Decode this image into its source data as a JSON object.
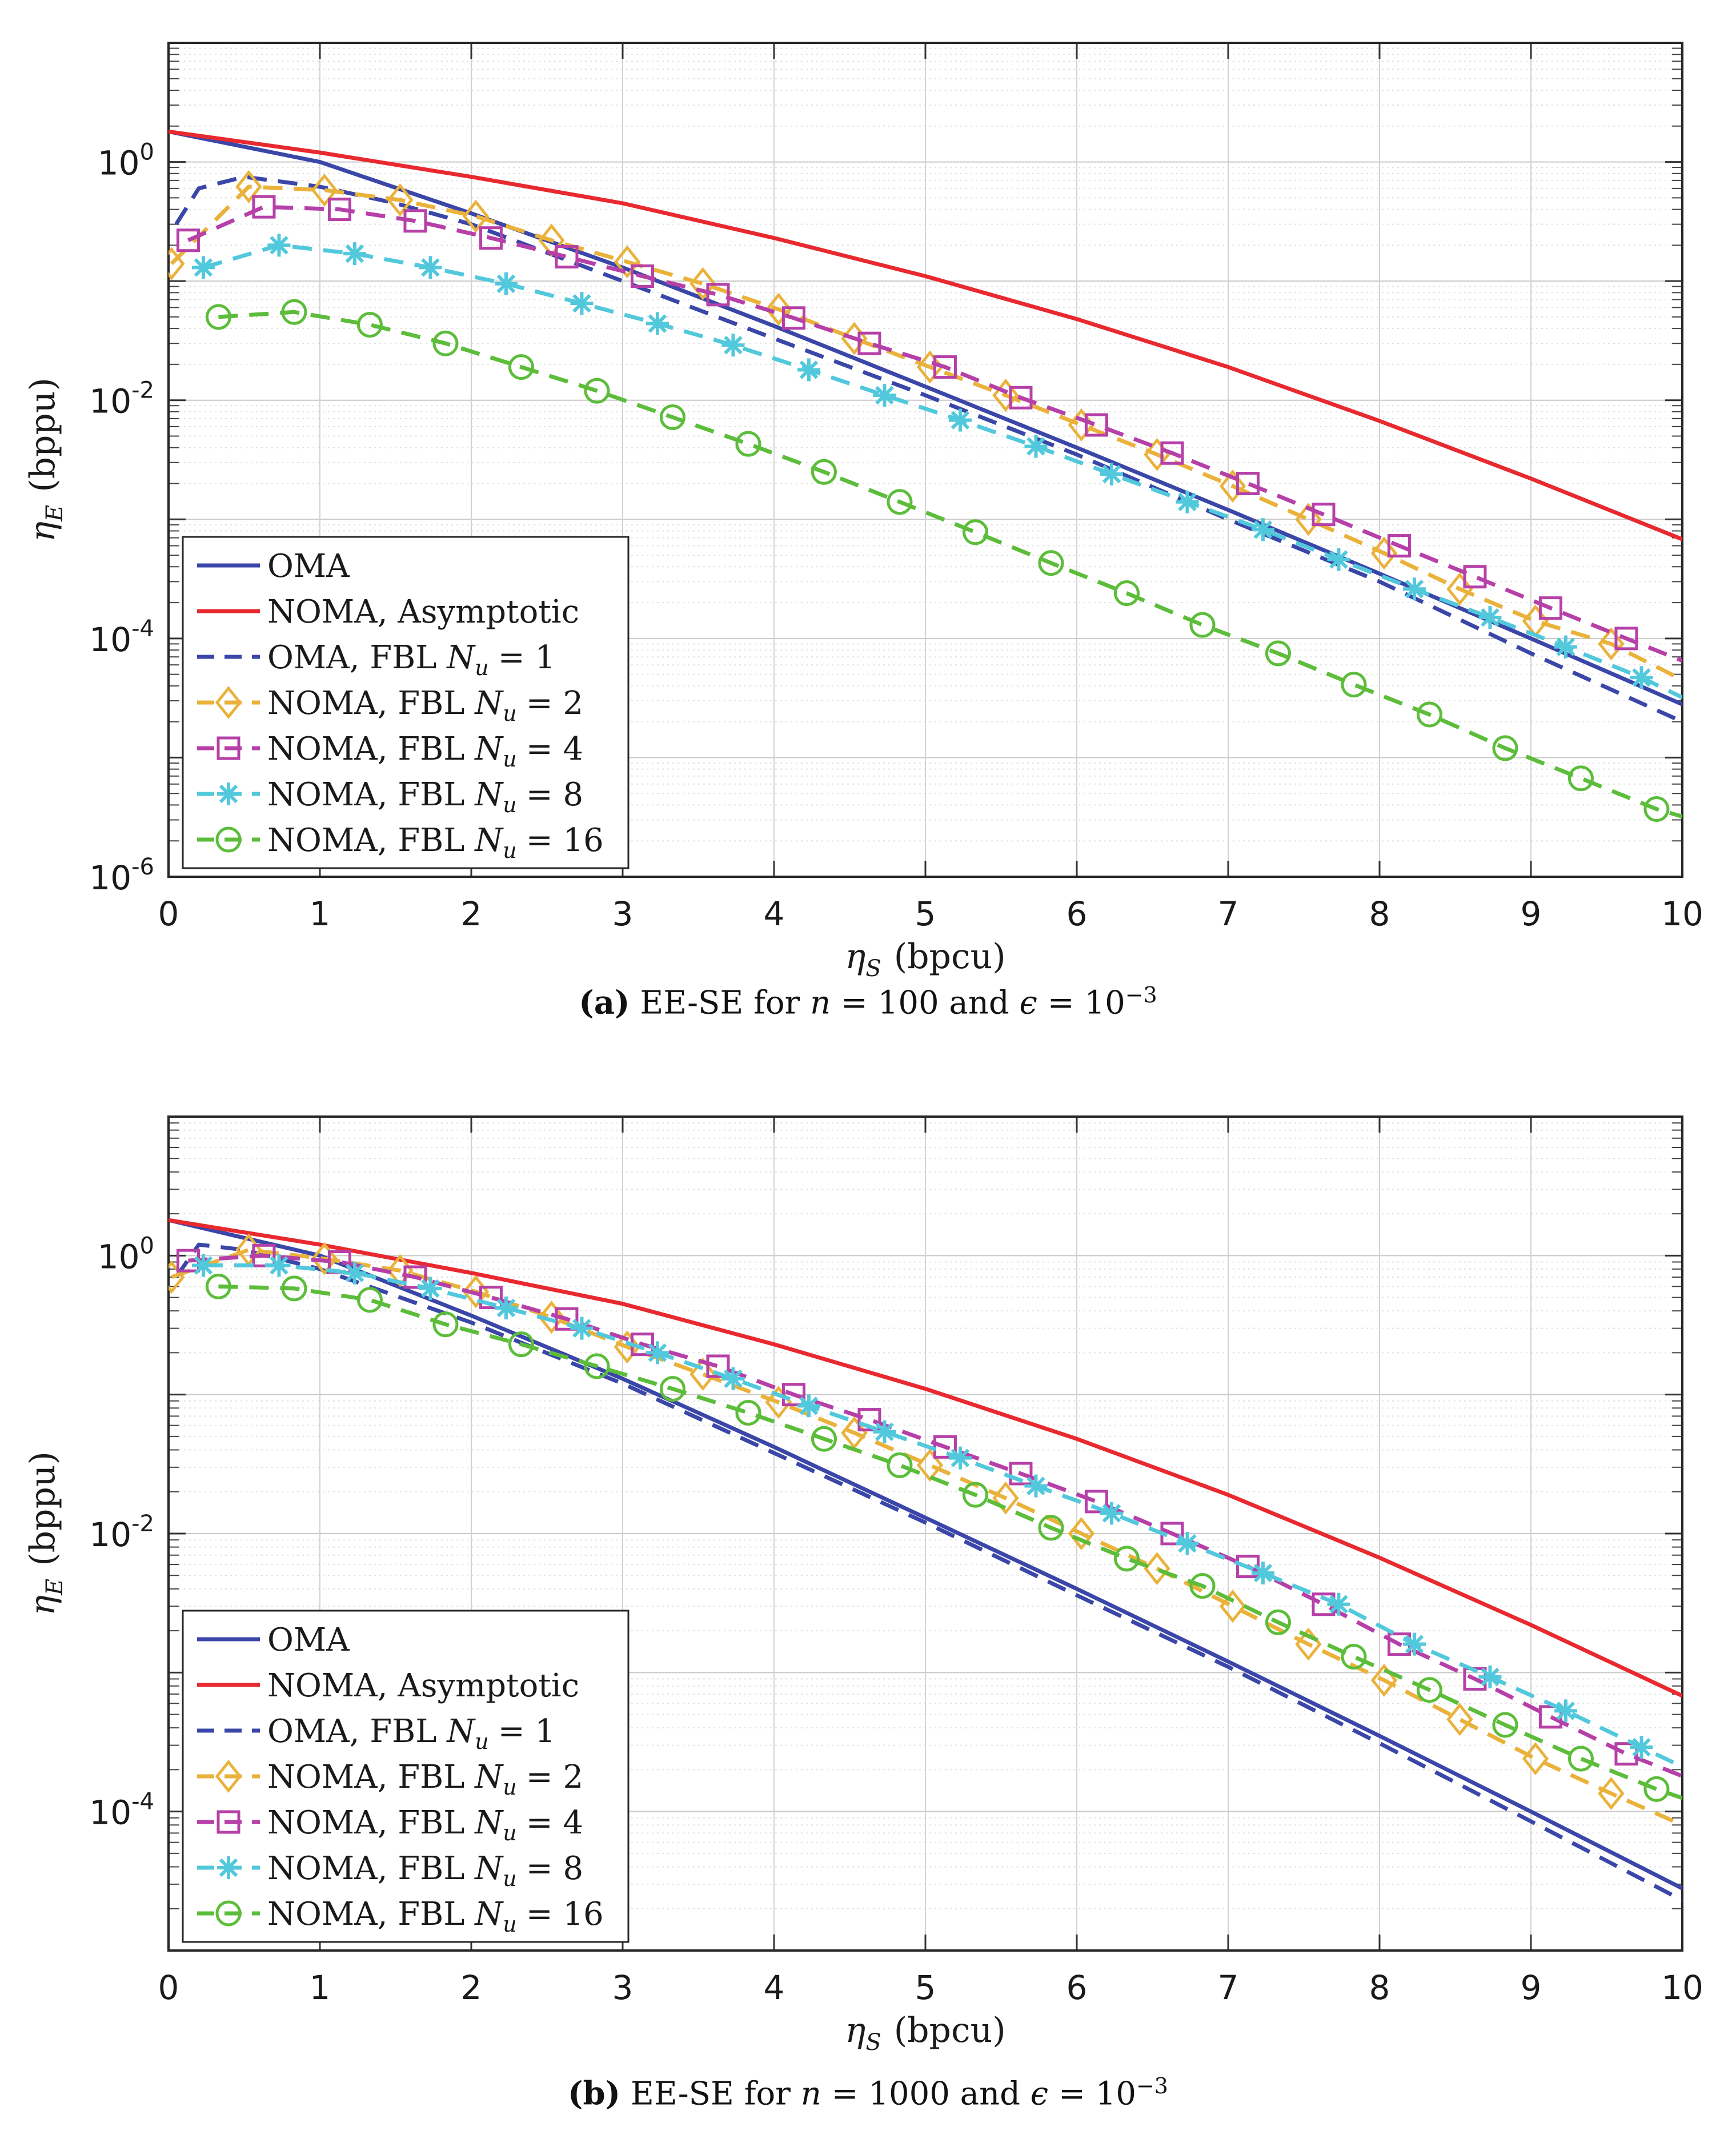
{
  "chart_data": [
    {
      "type": "line",
      "id": "a",
      "yscale": "log",
      "xlim": [
        0,
        10
      ],
      "ylim_exp": [
        -6,
        1
      ],
      "xticks": [
        "0",
        "1",
        "2",
        "3",
        "4",
        "5",
        "6",
        "7",
        "8",
        "9",
        "10"
      ],
      "yticks": [
        {
          "base": "10",
          "exp": "0"
        },
        {
          "base": "10",
          "exp": "-2"
        },
        {
          "base": "10",
          "exp": "-4"
        },
        {
          "base": "10",
          "exp": "-6"
        }
      ],
      "xlabel": {
        "sym": "η",
        "sub": "S",
        "unit": "(bpcu)"
      },
      "ylabel": {
        "sym": "η",
        "sub": "E",
        "unit": "(bppu)"
      },
      "caption": {
        "label": "(a)",
        "text": "EE-SE for",
        "n_sym": "n",
        "n_val": "= 100 and",
        "eps_sym": "ϵ",
        "eps_val": "= 10",
        "eps_exp": "−3"
      },
      "legend": {
        "position": "bottom-left"
      },
      "series": [
        {
          "name": "OMA",
          "color": "#3a46a8",
          "dash": "solid",
          "marker": "none",
          "x": [
            0,
            1,
            2,
            3,
            4,
            5,
            6,
            7,
            8,
            9,
            10
          ],
          "y": [
            1.8,
            1.0,
            0.37,
            0.13,
            0.042,
            0.013,
            0.004,
            0.0012,
            0.00035,
            0.0001,
            2.8e-05
          ]
        },
        {
          "name": "NOMA, Asymptotic",
          "color": "#e8292f",
          "dash": "solid",
          "marker": "none",
          "x": [
            0,
            1,
            2,
            3,
            4,
            5,
            6,
            7,
            8,
            9,
            10
          ],
          "y": [
            1.8,
            1.2,
            0.75,
            0.45,
            0.23,
            0.11,
            0.048,
            0.019,
            0.0067,
            0.0022,
            0.00068
          ]
        },
        {
          "name": "OMA, FBL N_u = 1",
          "legend_prefix": "OMA, FBL",
          "color": "#3a46a8",
          "dash": "dash",
          "marker": "none",
          "x": [
            0.05,
            0.2,
            0.5,
            1,
            1.5,
            2,
            3,
            4,
            5,
            6,
            7,
            8,
            9,
            10
          ],
          "y": [
            0.3,
            0.6,
            0.75,
            0.62,
            0.45,
            0.3,
            0.1,
            0.033,
            0.011,
            0.0035,
            0.001,
            0.0003,
            7.5e-05,
            2e-05
          ]
        },
        {
          "name": "NOMA, FBL N_u = 2",
          "legend_prefix": "NOMA, FBL",
          "legend_val": "= 2",
          "color": "#eab23b",
          "dash": "dash",
          "marker": "diamond",
          "x": [
            0.02,
            0.53,
            1.03,
            1.53,
            2.03,
            2.53,
            3.03,
            3.53,
            4.03,
            4.53,
            5.03,
            5.53,
            6.03,
            6.53,
            7.03,
            7.53,
            8.03,
            8.53,
            9.03,
            9.53,
            10
          ],
          "y": [
            0.14,
            0.62,
            0.58,
            0.48,
            0.35,
            0.22,
            0.145,
            0.095,
            0.058,
            0.033,
            0.019,
            0.011,
            0.0062,
            0.0035,
            0.0019,
            0.001,
            0.00052,
            0.00026,
            0.00014,
            9e-05,
            4.5e-05
          ]
        },
        {
          "name": "NOMA, FBL N_u = 4",
          "legend_prefix": "NOMA, FBL",
          "legend_val": "= 4",
          "color": "#b640a8",
          "dash": "dash",
          "marker": "square",
          "x": [
            0.13,
            0.63,
            1.13,
            1.63,
            2.13,
            2.63,
            3.13,
            3.63,
            4.13,
            4.63,
            5.13,
            5.63,
            6.13,
            6.63,
            7.13,
            7.63,
            8.13,
            8.63,
            9.13,
            9.63,
            10
          ],
          "y": [
            0.22,
            0.42,
            0.4,
            0.32,
            0.23,
            0.16,
            0.11,
            0.077,
            0.049,
            0.03,
            0.019,
            0.0105,
            0.0062,
            0.0036,
            0.002,
            0.0011,
            0.0006,
            0.00033,
            0.00018,
            0.0001,
            6.5e-05
          ]
        },
        {
          "name": "NOMA, FBL N_u = 8",
          "legend_prefix": "NOMA, FBL",
          "legend_val": "= 8",
          "color": "#52c8dc",
          "dash": "dash",
          "marker": "star",
          "x": [
            0.23,
            0.73,
            1.23,
            1.73,
            2.23,
            2.73,
            3.23,
            3.73,
            4.23,
            4.73,
            5.23,
            5.73,
            6.23,
            6.73,
            7.23,
            7.73,
            8.23,
            8.73,
            9.23,
            9.73,
            10
          ],
          "y": [
            0.13,
            0.2,
            0.17,
            0.13,
            0.095,
            0.065,
            0.044,
            0.029,
            0.018,
            0.011,
            0.0068,
            0.0041,
            0.0024,
            0.0014,
            0.00082,
            0.00046,
            0.00026,
            0.00015,
            8.5e-05,
            4.7e-05,
            3.2e-05
          ]
        },
        {
          "name": "NOMA, FBL N_u = 16",
          "legend_prefix": "NOMA, FBL",
          "legend_val": "= 16",
          "color": "#5cbd3a",
          "dash": "dash",
          "marker": "circle",
          "x": [
            0.33,
            0.83,
            1.33,
            1.83,
            2.33,
            2.83,
            3.33,
            3.83,
            4.33,
            4.83,
            5.33,
            5.83,
            6.33,
            6.83,
            7.33,
            7.83,
            8.33,
            8.83,
            9.33,
            9.83,
            10
          ],
          "y": [
            0.05,
            0.055,
            0.043,
            0.03,
            0.019,
            0.012,
            0.0072,
            0.0043,
            0.0025,
            0.0014,
            0.00078,
            0.00043,
            0.00024,
            0.00013,
            7.5e-05,
            4.1e-05,
            2.3e-05,
            1.2e-05,
            6.7e-06,
            3.7e-06,
            3.2e-06
          ]
        }
      ]
    },
    {
      "type": "line",
      "id": "b",
      "yscale": "log",
      "xlim": [
        0,
        10
      ],
      "ylim_exp": [
        -5,
        1
      ],
      "xticks": [
        "0",
        "1",
        "2",
        "3",
        "4",
        "5",
        "6",
        "7",
        "8",
        "9",
        "10"
      ],
      "yticks": [
        {
          "base": "10",
          "exp": "0"
        },
        {
          "base": "10",
          "exp": "-2"
        },
        {
          "base": "10",
          "exp": "-4"
        }
      ],
      "xlabel": {
        "sym": "η",
        "sub": "S",
        "unit": "(bpcu)"
      },
      "ylabel": {
        "sym": "η",
        "sub": "E",
        "unit": "(bppu)"
      },
      "caption": {
        "label": "(b)",
        "text": "EE-SE for",
        "n_sym": "n",
        "n_val": "= 1000 and",
        "eps_sym": "ϵ",
        "eps_val": "= 10",
        "eps_exp": "−3"
      },
      "legend": {
        "position": "bottom-left"
      },
      "series": [
        {
          "name": "OMA",
          "color": "#3a46a8",
          "dash": "solid",
          "marker": "none",
          "x": [
            0,
            1,
            2,
            3,
            4,
            5,
            6,
            7,
            8,
            9,
            10
          ],
          "y": [
            1.8,
            1.0,
            0.37,
            0.13,
            0.042,
            0.013,
            0.004,
            0.0012,
            0.00035,
            0.0001,
            2.8e-05
          ]
        },
        {
          "name": "NOMA, Asymptotic",
          "color": "#e8292f",
          "dash": "solid",
          "marker": "none",
          "x": [
            0,
            1,
            2,
            3,
            4,
            5,
            6,
            7,
            8,
            9,
            10
          ],
          "y": [
            1.8,
            1.2,
            0.75,
            0.45,
            0.23,
            0.11,
            0.048,
            0.019,
            0.0067,
            0.0022,
            0.00068
          ]
        },
        {
          "name": "OMA, FBL N_u = 1",
          "color": "#3a46a8",
          "dash": "dash",
          "marker": "none",
          "x": [
            0.05,
            0.2,
            0.5,
            1,
            2,
            3,
            4,
            5,
            6,
            7,
            8,
            9,
            10
          ],
          "y": [
            0.7,
            1.2,
            1.1,
            0.8,
            0.33,
            0.12,
            0.038,
            0.012,
            0.0036,
            0.0011,
            0.00031,
            8.5e-05,
            2.3e-05
          ]
        },
        {
          "name": "NOMA, FBL N_u = 2",
          "color": "#eab23b",
          "dash": "dash",
          "marker": "diamond",
          "x": [
            0.02,
            0.53,
            1.03,
            1.53,
            2.03,
            2.53,
            3.03,
            3.53,
            4.03,
            4.53,
            5.03,
            5.53,
            6.03,
            6.53,
            7.03,
            7.53,
            8.03,
            8.53,
            9.03,
            9.53,
            10
          ],
          "y": [
            0.7,
            1.1,
            0.95,
            0.78,
            0.55,
            0.36,
            0.22,
            0.14,
            0.088,
            0.053,
            0.031,
            0.018,
            0.01,
            0.0056,
            0.003,
            0.0016,
            0.00088,
            0.00046,
            0.00024,
            0.000135,
            8e-05
          ]
        },
        {
          "name": "NOMA, FBL N_u = 4",
          "color": "#b640a8",
          "dash": "dash",
          "marker": "square",
          "x": [
            0.13,
            0.63,
            1.13,
            1.63,
            2.13,
            2.63,
            3.13,
            3.63,
            4.13,
            4.63,
            5.13,
            5.63,
            6.13,
            6.63,
            7.13,
            7.63,
            8.13,
            8.63,
            9.13,
            9.63,
            10
          ],
          "y": [
            0.92,
            1.0,
            0.9,
            0.7,
            0.5,
            0.35,
            0.23,
            0.16,
            0.1,
            0.066,
            0.042,
            0.027,
            0.017,
            0.01,
            0.0058,
            0.0031,
            0.0016,
            0.0009,
            0.00048,
            0.00026,
            0.00018
          ]
        },
        {
          "name": "NOMA, FBL N_u = 8",
          "color": "#52c8dc",
          "dash": "dash",
          "marker": "star",
          "x": [
            0.23,
            0.73,
            1.23,
            1.73,
            2.23,
            2.73,
            3.23,
            3.73,
            4.23,
            4.73,
            5.23,
            5.73,
            6.23,
            6.73,
            7.23,
            7.73,
            8.23,
            8.73,
            9.23,
            9.73,
            10
          ],
          "y": [
            0.85,
            0.85,
            0.75,
            0.58,
            0.42,
            0.3,
            0.2,
            0.13,
            0.083,
            0.054,
            0.035,
            0.022,
            0.014,
            0.0085,
            0.0052,
            0.0031,
            0.0016,
            0.00093,
            0.00053,
            0.00029,
            0.00021
          ]
        },
        {
          "name": "NOMA, FBL N_u = 16",
          "color": "#5cbd3a",
          "dash": "dash",
          "marker": "circle",
          "x": [
            0.33,
            0.83,
            1.33,
            1.83,
            2.33,
            2.83,
            3.33,
            3.83,
            4.33,
            4.83,
            5.33,
            5.83,
            6.33,
            6.83,
            7.33,
            7.83,
            8.33,
            8.83,
            9.33,
            9.83,
            10
          ],
          "y": [
            0.6,
            0.58,
            0.48,
            0.32,
            0.23,
            0.16,
            0.11,
            0.074,
            0.048,
            0.031,
            0.019,
            0.011,
            0.0066,
            0.0042,
            0.0023,
            0.0013,
            0.00075,
            0.00042,
            0.00024,
            0.000145,
            0.000125
          ]
        }
      ]
    }
  ]
}
